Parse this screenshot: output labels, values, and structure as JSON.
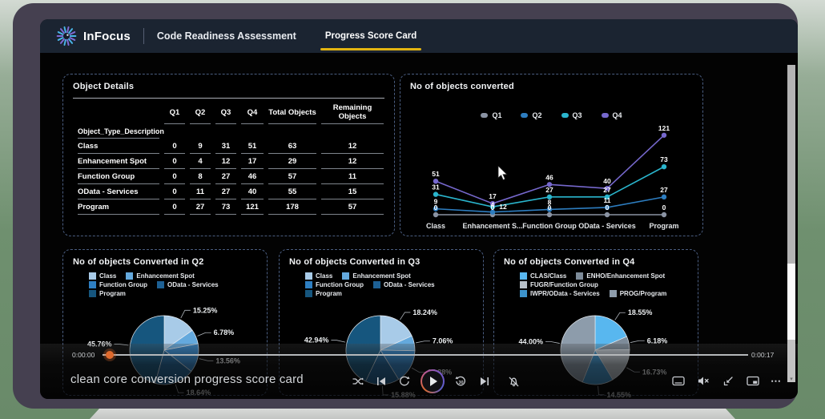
{
  "header": {
    "brand": "InFocus",
    "app_title": "Code Readiness Assessment",
    "tab": "Progress Score Card",
    "accent_color": "#e2b411",
    "logo_colors": [
      "#49b6e8",
      "#7f6bd6"
    ]
  },
  "object_details": {
    "title": "Object Details",
    "dimension_label": "Object_Type_Description",
    "columns": [
      "Q1",
      "Q2",
      "Q3",
      "Q4",
      "Total Objects",
      "Remaining Objects"
    ],
    "rows": [
      {
        "label": "Class",
        "values": [
          "0",
          "9",
          "31",
          "51",
          "63",
          "12"
        ]
      },
      {
        "label": "Enhancement Spot",
        "values": [
          "0",
          "4",
          "12",
          "17",
          "29",
          "12"
        ]
      },
      {
        "label": "Function Group",
        "values": [
          "0",
          "8",
          "27",
          "46",
          "57",
          "11"
        ]
      },
      {
        "label": "OData - Services",
        "values": [
          "0",
          "11",
          "27",
          "40",
          "55",
          "15"
        ]
      },
      {
        "label": "Program",
        "values": [
          "0",
          "27",
          "73",
          "121",
          "178",
          "57"
        ]
      }
    ]
  },
  "chart_data": [
    {
      "type": "line",
      "title": "No of objects converted",
      "categories": [
        "Class",
        "Enhancement S...",
        "Function Group",
        "OData - Services",
        "Program"
      ],
      "series": [
        {
          "name": "Q1",
          "color": "#8a93a3",
          "values": [
            0,
            0,
            0,
            0,
            0
          ]
        },
        {
          "name": "Q2",
          "color": "#2d7dc0",
          "values": [
            9,
            4,
            8,
            11,
            27
          ]
        },
        {
          "name": "Q3",
          "color": "#2ab5cd",
          "values": [
            31,
            12,
            27,
            27,
            73
          ]
        },
        {
          "name": "Q4",
          "color": "#7668cd",
          "values": [
            51,
            17,
            46,
            40,
            121
          ]
        }
      ],
      "ylim": [
        0,
        130
      ],
      "grid": false,
      "legend_position": "top",
      "point_labels": true
    },
    {
      "type": "pie",
      "title": "No of objects Converted in Q2",
      "labels": [
        "Class",
        "Enhancement Spot",
        "Function Group",
        "OData - Services",
        "Program"
      ],
      "values": [
        15.25,
        6.78,
        13.56,
        18.64,
        45.76
      ],
      "display_labels": [
        "15.25%",
        "6.78%",
        "13.56%",
        "18.64%",
        "45.76%"
      ],
      "colors": [
        "#a8cbe8",
        "#64a9dd",
        "#2e7fc2",
        "#1d6094",
        "#16567e"
      ]
    },
    {
      "type": "pie",
      "title": "No of objects Converted in Q3",
      "labels": [
        "Class",
        "Enhancement Spot",
        "Function Group",
        "OData - Services",
        "Program"
      ],
      "values": [
        18.24,
        7.06,
        15.88,
        15.88,
        42.94
      ],
      "display_labels": [
        "18.24%",
        "7.06%",
        "15.88%",
        "15.88%",
        "42.94%"
      ],
      "colors": [
        "#a8cbe8",
        "#64a9dd",
        "#2e7fc2",
        "#1d6094",
        "#16567e"
      ]
    },
    {
      "type": "pie",
      "title": "No of objects Converted in Q4",
      "labels": [
        "CLAS/Class",
        "ENHO/Enhancement Spot",
        "FUGR/Function Group",
        "IWPR/OData - Services",
        "PROG/Program"
      ],
      "values": [
        18.55,
        6.18,
        16.73,
        14.55,
        44.0
      ],
      "display_labels": [
        "18.55%",
        "6.18%",
        "16.73%",
        "14.55%",
        "44.00%"
      ],
      "colors": [
        "#58b7ef",
        "#7d8b99",
        "#b7c0c8",
        "#3c93cc",
        "#8d9cab"
      ]
    }
  ],
  "video_player": {
    "elapsed": "0:00:00",
    "duration": "0:00:17",
    "title": "clean core conversion progress score card",
    "scrubber_color": "#e06a2d",
    "icons": {
      "more": "⋯",
      "forward_label": "30"
    }
  }
}
